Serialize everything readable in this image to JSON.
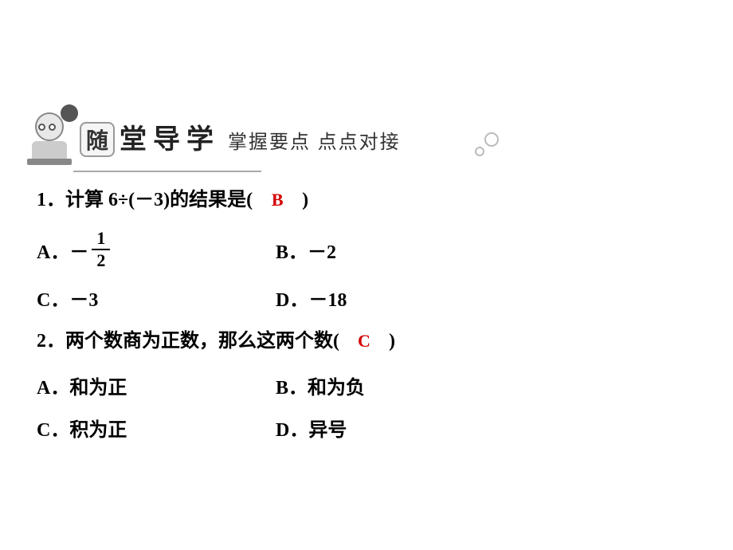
{
  "header": {
    "title_chars": [
      "随",
      "堂",
      "导",
      "学"
    ],
    "subtitle": "掌握要点 点点对接"
  },
  "q1": {
    "prefix": "1．计算 6÷(－3)的结果是(",
    "answer": "B",
    "suffix": ")",
    "optA_label": "A．－",
    "optA_frac_num": "1",
    "optA_frac_den": "2",
    "optB": "B．－2",
    "optC": "C．－3",
    "optD": "D．－18"
  },
  "q2": {
    "prefix": "2．两个数商为正数，那么这两个数(",
    "answer": "C",
    "suffix": ")",
    "optA": "A．和为正",
    "optB": "B．和为负",
    "optC": "C．积为正",
    "optD": "D．异号"
  },
  "colors": {
    "answer_color": "#d40000",
    "text_color": "#000000",
    "background": "#ffffff"
  }
}
